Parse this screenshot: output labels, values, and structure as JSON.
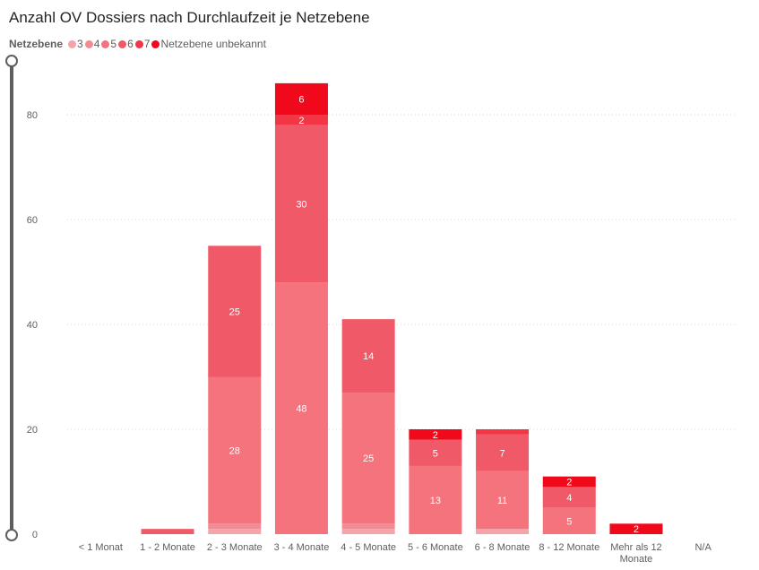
{
  "chart_data": {
    "type": "bar",
    "stacked": true,
    "title": "Anzahl OV Dossiers nach Durchlaufzeit je Netzebene",
    "legend_title": "Netzebene",
    "legend_position": "top-left",
    "categories": [
      "< 1 Monat",
      "1 - 2 Monate",
      "2 - 3 Monate",
      "3 - 4 Monate",
      "4 - 5 Monate",
      "5 - 6 Monate",
      "6 - 8 Monate",
      "8 - 12 Monate",
      "Mehr als 12 Monate",
      "N/A"
    ],
    "series": [
      {
        "name": "3",
        "color": "#F4A3A8",
        "values": [
          0,
          0,
          1,
          0,
          1,
          0,
          1,
          0,
          0,
          0
        ]
      },
      {
        "name": "4",
        "color": "#F48A93",
        "values": [
          0,
          0,
          1,
          0,
          1,
          0,
          0,
          0,
          0,
          0
        ]
      },
      {
        "name": "5",
        "color": "#F4737D",
        "values": [
          0,
          0,
          28,
          48,
          25,
          13,
          11,
          5,
          0,
          0
        ]
      },
      {
        "name": "6",
        "color": "#F05A68",
        "values": [
          0,
          1,
          25,
          30,
          14,
          5,
          7,
          4,
          0,
          0
        ]
      },
      {
        "name": "7",
        "color": "#F23645",
        "values": [
          0,
          0,
          0,
          2,
          0,
          0,
          1,
          0,
          0,
          0
        ]
      },
      {
        "name": "Netzebene unbekannt",
        "color": "#F0091B",
        "values": [
          0,
          0,
          0,
          6,
          0,
          2,
          0,
          2,
          2,
          0
        ]
      }
    ],
    "data_labels": [
      {
        "category": "2 - 3 Monate",
        "series": "5",
        "text": "28"
      },
      {
        "category": "2 - 3 Monate",
        "series": "6",
        "text": "25"
      },
      {
        "category": "3 - 4 Monate",
        "series": "5",
        "text": "48"
      },
      {
        "category": "3 - 4 Monate",
        "series": "6",
        "text": "30"
      },
      {
        "category": "3 - 4 Monate",
        "series": "7",
        "text": "2"
      },
      {
        "category": "3 - 4 Monate",
        "series": "Netzebene unbekannt",
        "text": "6"
      },
      {
        "category": "4 - 5 Monate",
        "series": "5",
        "text": "25"
      },
      {
        "category": "4 - 5 Monate",
        "series": "6",
        "text": "14"
      },
      {
        "category": "5 - 6 Monate",
        "series": "5",
        "text": "13"
      },
      {
        "category": "5 - 6 Monate",
        "series": "6",
        "text": "5"
      },
      {
        "category": "5 - 6 Monate",
        "series": "Netzebene unbekannt",
        "text": "2"
      },
      {
        "category": "6 - 8 Monate",
        "series": "5",
        "text": "11"
      },
      {
        "category": "6 - 8 Monate",
        "series": "6",
        "text": "7"
      },
      {
        "category": "8 - 12 Monate",
        "series": "5",
        "text": "5"
      },
      {
        "category": "8 - 12 Monate",
        "series": "6",
        "text": "4"
      },
      {
        "category": "8 - 12 Monate",
        "series": "Netzebene unbekannt",
        "text": "2"
      },
      {
        "category": "Mehr als 12 Monate",
        "series": "Netzebene unbekannt",
        "text": "2"
      }
    ],
    "y_ticks": [
      0,
      20,
      40,
      60,
      80
    ],
    "ylim": [
      0,
      86
    ],
    "grid": true,
    "xlabel": "",
    "ylabel": ""
  }
}
